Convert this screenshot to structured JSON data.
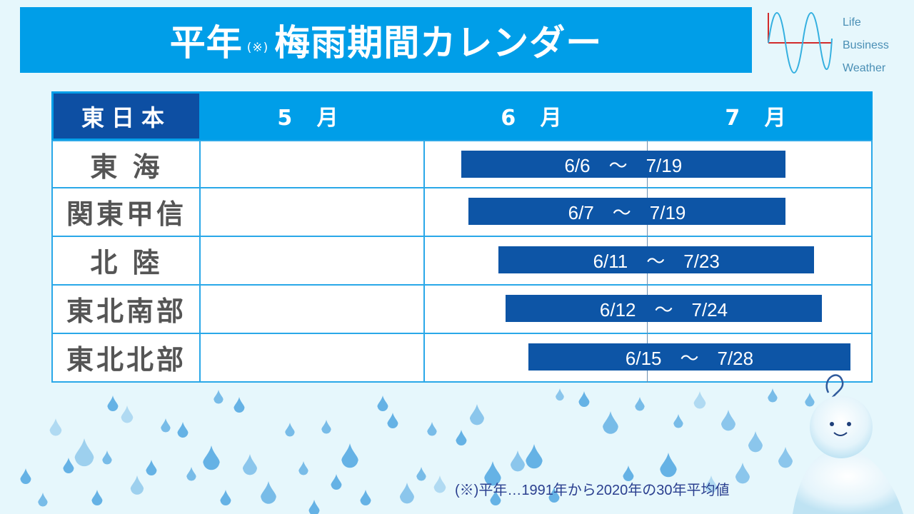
{
  "title": {
    "main": "平年",
    "note": "(※)",
    "rest": "梅雨期間カレンダー"
  },
  "logo": {
    "words": [
      "Life",
      "Business",
      "Weather"
    ],
    "wave_color": "#35b0e0",
    "line_color": "#d12b2b"
  },
  "chart_data": {
    "type": "bar",
    "orientation": "horizontal-gantt",
    "header_label": "東日本",
    "months": [
      "5 月",
      "6 月",
      "7 月"
    ],
    "categories": [
      "東 海",
      "関東甲信",
      "北 陸",
      "東北南部",
      "東北北部"
    ],
    "series": [
      {
        "start": "6/6",
        "end": "7/19",
        "label": "6/6　～　7/19"
      },
      {
        "start": "6/7",
        "end": "7/19",
        "label": "6/7　～　7/19"
      },
      {
        "start": "6/11",
        "end": "7/23",
        "label": "6/11　～　7/23"
      },
      {
        "start": "6/12",
        "end": "7/24",
        "label": "6/12　～　7/24"
      },
      {
        "start": "6/15",
        "end": "7/28",
        "label": "6/15　～　7/28"
      }
    ],
    "bar_color": "#0d55a6",
    "header_color": "#009ee8",
    "label_cell_color": "#0d4fa3"
  },
  "footnote": "(※)平年…1991年から2020年の30年平均値",
  "colors": {
    "background": "#e6f7fc",
    "title_bg": "#009ee8",
    "drop": "#4aa3e0"
  }
}
